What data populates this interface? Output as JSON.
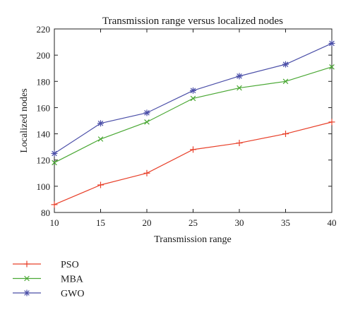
{
  "chart_data": {
    "type": "line",
    "title": "Transmission range versus localized nodes",
    "xlabel": "Transmission range",
    "ylabel": "Localized nodes",
    "x": [
      10,
      15,
      20,
      25,
      30,
      35,
      40
    ],
    "xlim": [
      10,
      40
    ],
    "ylim": [
      80,
      220
    ],
    "xticks": [
      "10",
      "15",
      "20",
      "25",
      "30",
      "35",
      "40"
    ],
    "yticks": [
      "80",
      "100",
      "120",
      "140",
      "160",
      "180",
      "200",
      "220"
    ],
    "grid": false,
    "legend_position": "bottom-left, outside plot",
    "series": [
      {
        "name": "PSO",
        "values": [
          86,
          101,
          110,
          128,
          133,
          140,
          149
        ],
        "color": "#e8402a",
        "marker": "plus"
      },
      {
        "name": "MBA",
        "values": [
          118,
          136,
          149,
          167,
          175,
          180,
          191
        ],
        "color": "#4aa834",
        "marker": "cross"
      },
      {
        "name": "GWO",
        "values": [
          125,
          148,
          156,
          173,
          184,
          193,
          209
        ],
        "color": "#4b4fa8",
        "marker": "star"
      }
    ]
  }
}
